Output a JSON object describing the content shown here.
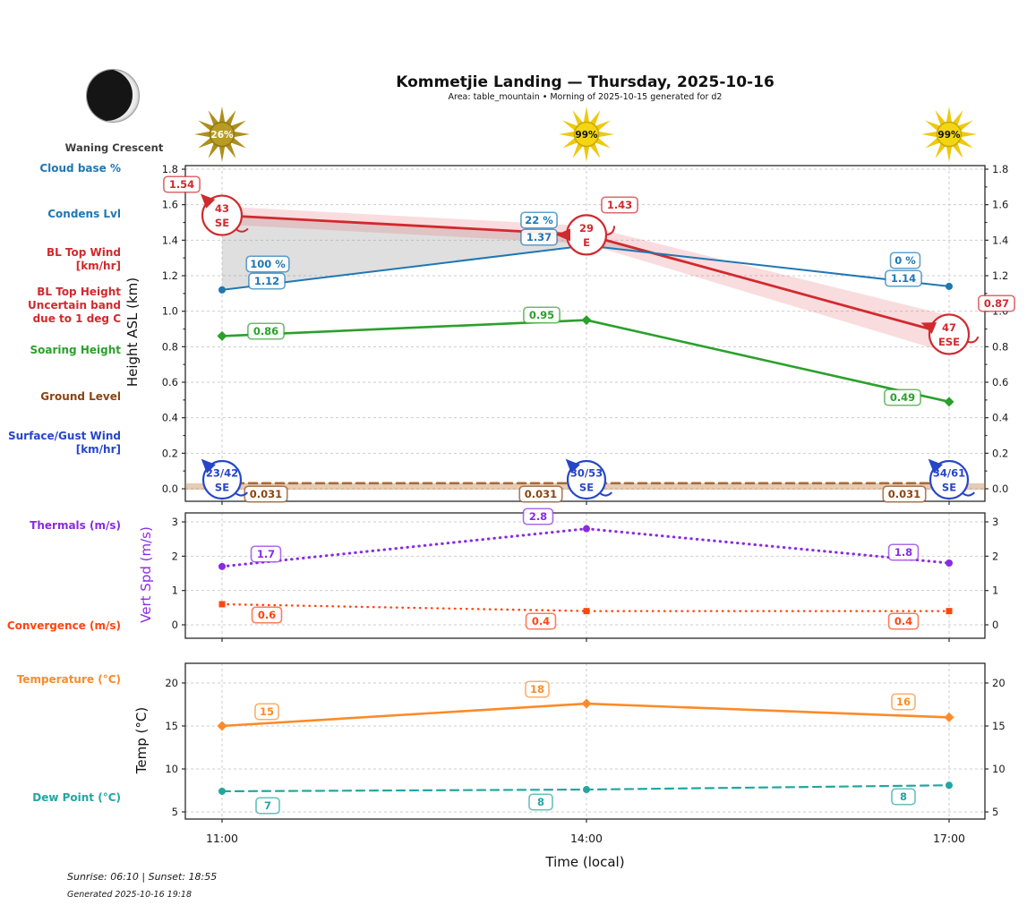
{
  "header": {
    "title": "Kommetjie Landing — Thursday, 2025-10-16",
    "subtitle": "Area: table_mountain • Morning of 2025-10-15 generated for d2",
    "moon_phase": "Waning Crescent"
  },
  "left_labels": {
    "cloud_base": "Cloud base %",
    "condens_lvl": "Condens Lvl",
    "bl_top_wind": "BL Top Wind",
    "bl_top_wind_unit": "[km/hr]",
    "bl_top_height_1": "BL Top Height",
    "bl_top_height_2": "Uncertain band",
    "bl_top_height_3": "due to 1 deg C",
    "soaring_height": "Soaring Height",
    "ground_level": "Ground Level",
    "surface_wind": "Surface/Gust Wind",
    "surface_wind_unit": "[km/hr]",
    "thermals": "Thermals (m/s)",
    "convergence": "Convergence (m/s)",
    "temperature": "Temperature (°C)",
    "dew_point": "Dew Point (°C)"
  },
  "footer": {
    "sun_times": "Sunrise: 06:10 | Sunset: 18:55",
    "generated": "Generated 2025-10-16 19:18"
  },
  "colors": {
    "condens": "#d02a2e",
    "bl_top": "#1f77b4",
    "soaring": "#2ca02c",
    "ground_line": "#a96a38",
    "ground_text": "#8b4513",
    "surface_wind": "#2646c9",
    "thermals": "#8a2be2",
    "convergence": "#ff4510",
    "temperature": "#fb8b28",
    "dew_point": "#22a7a0"
  },
  "chart_data": [
    {
      "id": "height",
      "type": "line",
      "ylabel": "Height ASL (km)",
      "ylim": [
        0,
        1.8
      ],
      "yticks": [
        "0.0",
        "0.2",
        "0.4",
        "0.6",
        "0.8",
        "1.0",
        "1.2",
        "1.4",
        "1.6",
        "1.8"
      ],
      "ytick_values": [
        0,
        0.2,
        0.4,
        0.6,
        0.8,
        1.0,
        1.2,
        1.4,
        1.6,
        1.8
      ],
      "x": [
        "11:00",
        "14:00",
        "17:00"
      ],
      "grid": true,
      "series": [
        {
          "name": "Condens Lvl",
          "color": "#d02a2e",
          "style": "solid",
          "values": [
            1.54,
            1.43,
            0.87
          ],
          "point_labels": [
            "1.54",
            "1.43",
            "0.87"
          ],
          "uncertainty_band": true
        },
        {
          "name": "BL Top Height",
          "color": "#1f77b4",
          "style": "solid",
          "marker": "circle",
          "values": [
            1.12,
            1.37,
            1.14
          ],
          "point_labels": [
            "1.12",
            "1.37",
            "1.14"
          ]
        },
        {
          "name": "Cloud base %",
          "color": "#1f77b4",
          "labels_only": true,
          "point_labels": [
            "100 %",
            "22 %",
            "0 %"
          ]
        },
        {
          "name": "Soaring Height",
          "color": "#2ca02c",
          "style": "solid",
          "marker": "diamond",
          "values": [
            0.86,
            0.95,
            0.49
          ],
          "point_labels": [
            "0.86",
            "0.95",
            "0.49"
          ]
        },
        {
          "name": "Ground Level",
          "color": "#a96a38",
          "style": "dashed",
          "values": [
            0.031,
            0.031,
            0.031
          ],
          "point_labels": [
            "0.031",
            "0.031",
            "0.031"
          ]
        }
      ],
      "bl_top_wind": [
        {
          "speed": "43",
          "dir": "SE"
        },
        {
          "speed": "29",
          "dir": "E"
        },
        {
          "speed": "47",
          "dir": "ESE"
        }
      ],
      "surface_gust_wind": [
        {
          "speed": "23/42",
          "dir": "SE"
        },
        {
          "speed": "30/53",
          "dir": "SE"
        },
        {
          "speed": "34/61",
          "dir": "SE"
        }
      ],
      "sunshine_pct": [
        "26%",
        "99%",
        "99%"
      ]
    },
    {
      "id": "vert_spd",
      "type": "line",
      "ylabel": "Vert Spd (m/s)",
      "ylim": [
        0,
        3
      ],
      "yticks": [
        "0",
        "1",
        "2",
        "3"
      ],
      "ytick_values": [
        0,
        1,
        2,
        3
      ],
      "x": [
        "11:00",
        "14:00",
        "17:00"
      ],
      "grid": true,
      "series": [
        {
          "name": "Thermals (m/s)",
          "color": "#8a2be2",
          "style": "dotted",
          "marker": "circle",
          "values": [
            1.7,
            2.8,
            1.8
          ],
          "point_labels": [
            "1.7",
            "2.8",
            "1.8"
          ]
        },
        {
          "name": "Convergence (m/s)",
          "color": "#ff4510",
          "style": "dotted",
          "marker": "square",
          "values": [
            0.6,
            0.4,
            0.4
          ],
          "point_labels": [
            "0.6",
            "0.4",
            "0.4"
          ]
        }
      ]
    },
    {
      "id": "temp",
      "type": "line",
      "ylabel": "Temp (°C)",
      "xlabel": "Time (local)",
      "ylim": [
        5,
        20
      ],
      "yticks": [
        "5",
        "10",
        "15",
        "20"
      ],
      "ytick_values": [
        5,
        10,
        15,
        20
      ],
      "x": [
        "11:00",
        "14:00",
        "17:00"
      ],
      "grid": true,
      "series": [
        {
          "name": "Temperature (°C)",
          "color": "#fb8b28",
          "style": "solid",
          "marker": "diamond",
          "values": [
            15,
            17.6,
            16
          ],
          "point_labels": [
            "15",
            "18",
            "16"
          ]
        },
        {
          "name": "Dew Point (°C)",
          "color": "#22a7a0",
          "style": "dashed",
          "marker": "circle",
          "values": [
            7.4,
            7.6,
            8.1
          ],
          "point_labels": [
            "7",
            "8",
            "8"
          ]
        }
      ]
    }
  ]
}
